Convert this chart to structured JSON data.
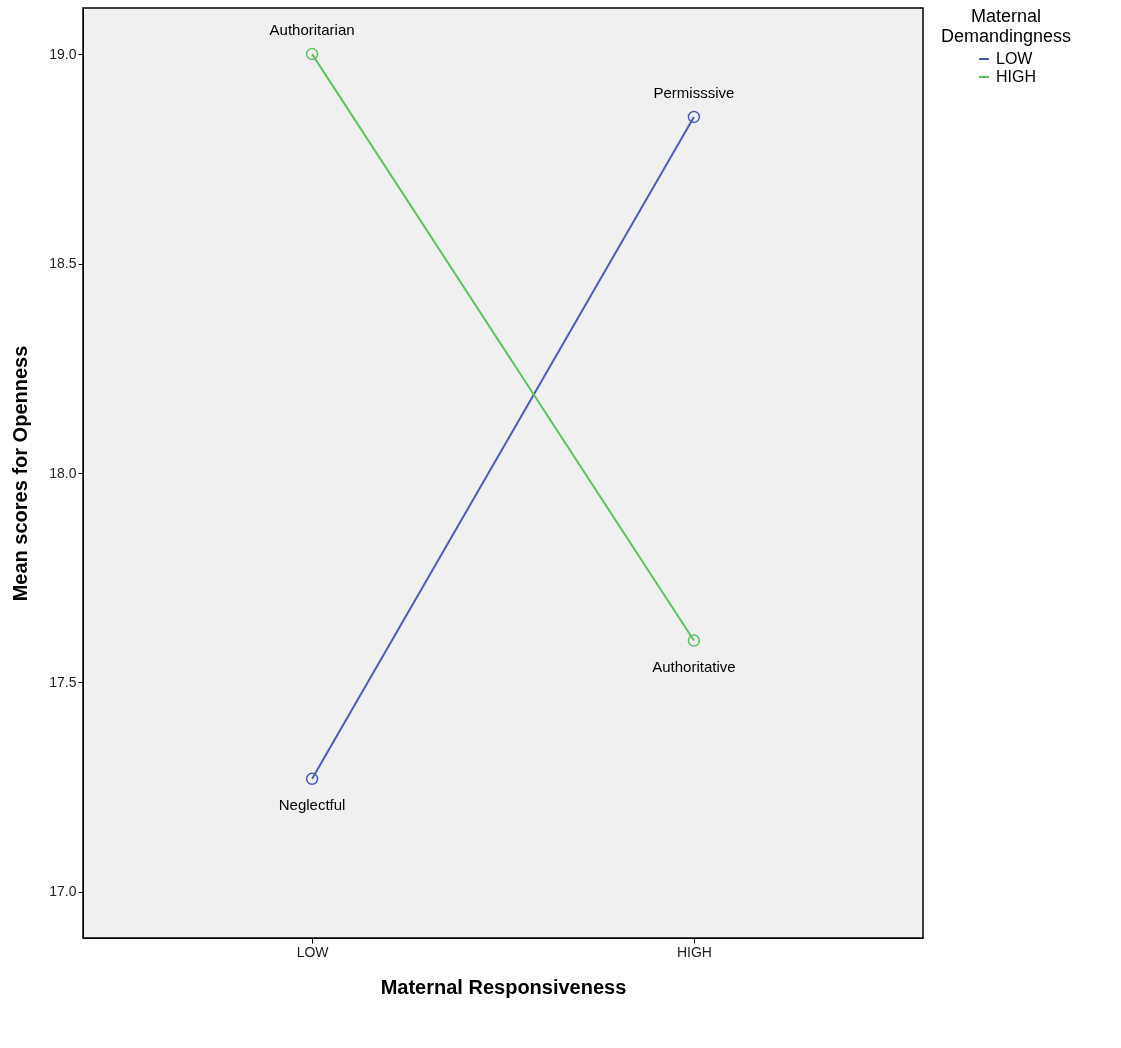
{
  "chart_data": {
    "type": "line",
    "xlabel": "Maternal Responsiveness",
    "ylabel": "Mean scores for Openness",
    "legend_title": "Maternal Demandingness",
    "categories": [
      "LOW",
      "HIGH"
    ],
    "series": [
      {
        "name": "LOW",
        "color": "#4a5cb8",
        "values": [
          17.27,
          18.85
        ]
      },
      {
        "name": "HIGH",
        "color": "#5cc35c",
        "values": [
          19.0,
          17.6
        ]
      }
    ],
    "ylim": [
      16.89,
      19.11
    ],
    "yticks": [
      {
        "value": 17,
        "label": "17.0"
      },
      {
        "value": 17.5,
        "label": "17.5"
      },
      {
        "value": 18,
        "label": "18.0"
      },
      {
        "value": 18.5,
        "label": "18.5"
      },
      {
        "value": 19,
        "label": "19.0"
      }
    ],
    "annotations": [
      {
        "text": "Authoritarian",
        "x": "LOW",
        "y": 19.0
      },
      {
        "text": "Permisssive",
        "x": "HIGH",
        "y": 18.85
      },
      {
        "text": "Authoritative",
        "x": "HIGH",
        "y": 17.6
      },
      {
        "text": "Neglectful",
        "x": "LOW",
        "y": 17.27
      }
    ],
    "grid": false,
    "legend": "right",
    "marker": "circle",
    "line_style": "solid"
  }
}
